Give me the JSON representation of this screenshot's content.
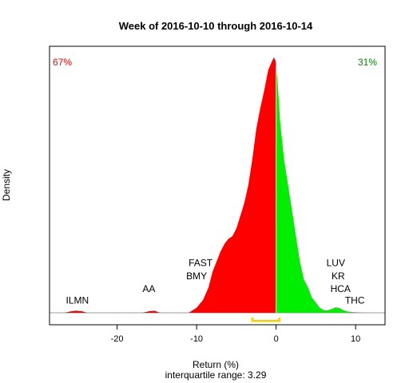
{
  "chart_data": {
    "type": "area",
    "title": "Week of 2016-10-10 through 2016-10-14",
    "xlabel": "Return (%)",
    "ylabel": "Density",
    "subtitle": "interquartile range: 3.29",
    "xlim": [
      -28.5,
      13.7
    ],
    "ylim": [
      0,
      1
    ],
    "x_ticks": [
      -20,
      -10,
      0,
      10
    ],
    "negative_share_label": "67%",
    "positive_share_label": "31%",
    "negative_color": "#ff0000",
    "positive_color": "#00ee00",
    "iqr": [
      -3.0,
      0.4
    ],
    "iqr_color": "#ffcc00",
    "density": {
      "x": [
        -26.6,
        -25.8,
        -25.2,
        -24.4,
        -23.8,
        -16.8,
        -16.0,
        -15.3,
        -14.6,
        -11.0,
        -10.0,
        -9.2,
        -8.5,
        -8.0,
        -7.5,
        -7.0,
        -6.5,
        -6.0,
        -5.5,
        -5.0,
        -4.5,
        -4.0,
        -3.5,
        -3.0,
        -2.5,
        -2.0,
        -1.5,
        -1.0,
        -0.6,
        -0.3,
        -0.1,
        0.0,
        0.2,
        0.5,
        1.0,
        1.5,
        2.0,
        2.5,
        3.0,
        3.5,
        4.0,
        4.5,
        5.0,
        5.5,
        6.0,
        6.5,
        7.0,
        7.5,
        8.0,
        8.5,
        9.0,
        10.0,
        11.0
      ],
      "y": [
        0,
        0.006,
        0.008,
        0.006,
        0,
        0,
        0.006,
        0.008,
        0,
        0,
        0.02,
        0.05,
        0.1,
        0.16,
        0.2,
        0.24,
        0.27,
        0.29,
        0.3,
        0.33,
        0.38,
        0.43,
        0.5,
        0.6,
        0.72,
        0.8,
        0.87,
        0.95,
        0.98,
        1.0,
        0.99,
        0.97,
        0.9,
        0.75,
        0.6,
        0.5,
        0.4,
        0.3,
        0.2,
        0.13,
        0.1,
        0.06,
        0.04,
        0.02,
        0.01,
        0.01,
        0.015,
        0.022,
        0.018,
        0.01,
        0.005,
        0.002,
        0
      ]
    },
    "annotations": [
      {
        "text": "ILMN",
        "x": -25.0,
        "y": 0.036
      },
      {
        "text": "AA",
        "x": -16.0,
        "y": 0.082
      },
      {
        "text": "BMY",
        "x": -10.0,
        "y": 0.132
      },
      {
        "text": "FAST",
        "x": -9.5,
        "y": 0.183
      },
      {
        "text": "LUV",
        "x": 7.5,
        "y": 0.183
      },
      {
        "text": "KR",
        "x": 7.8,
        "y": 0.132
      },
      {
        "text": "HCA",
        "x": 8.1,
        "y": 0.082
      },
      {
        "text": "THC",
        "x": 9.9,
        "y": 0.036
      }
    ]
  }
}
